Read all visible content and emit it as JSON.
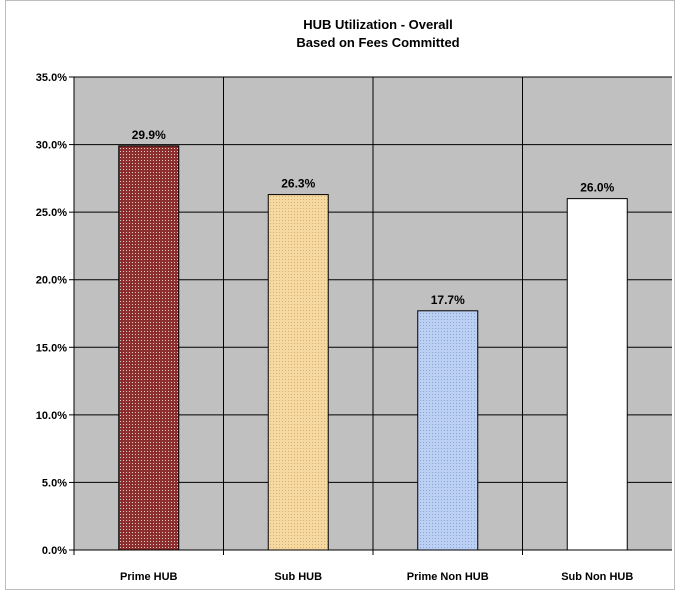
{
  "chart_data": {
    "type": "bar",
    "title": "HUB Utilization  - Overall",
    "subtitle": "Based on Fees Committed",
    "categories": [
      "Prime HUB",
      "Sub HUB",
      "Prime Non HUB",
      "Sub Non HUB"
    ],
    "values": [
      29.9,
      26.3,
      17.7,
      26.0
    ],
    "data_labels": [
      "29.9%",
      "26.3%",
      "17.7%",
      "26.0%"
    ],
    "ylim": [
      0,
      35
    ],
    "yticks": [
      0,
      5,
      10,
      15,
      20,
      25,
      30,
      35
    ],
    "ytick_labels": [
      "0.0%",
      "5.0%",
      "10.0%",
      "15.0%",
      "20.0%",
      "25.0%",
      "30.0%",
      "35.0%"
    ],
    "grid": true,
    "legend": "none",
    "plot_background": "#c0c0c0",
    "bar_colors": [
      "#7a2626",
      "#f6d9a0",
      "#b4c8f0",
      "#ffffff"
    ]
  }
}
